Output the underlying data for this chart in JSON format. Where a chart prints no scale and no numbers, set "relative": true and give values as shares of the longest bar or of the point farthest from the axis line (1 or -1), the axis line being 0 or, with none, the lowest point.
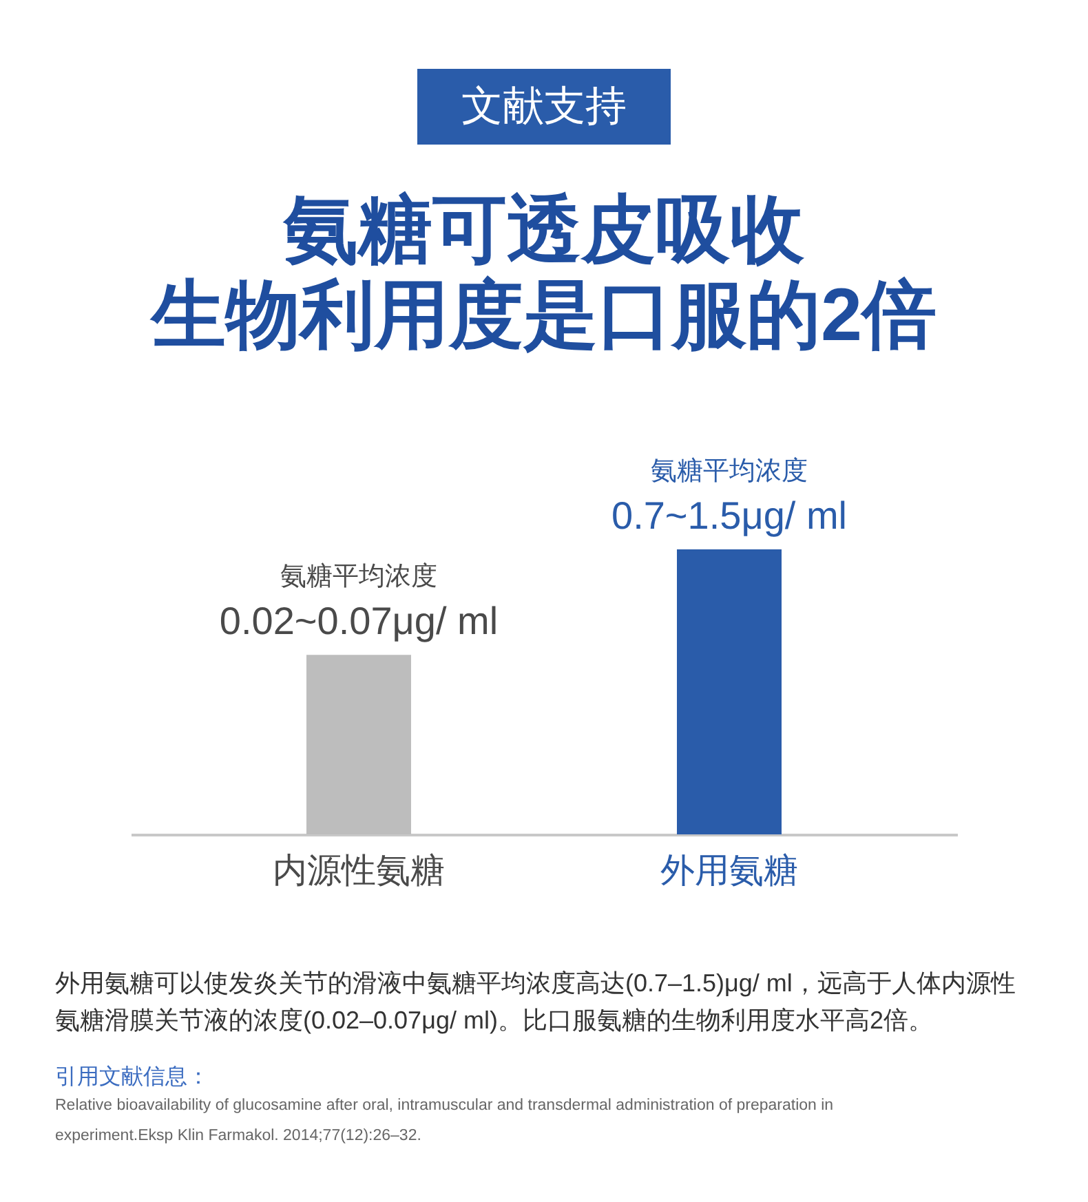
{
  "chart_data": {
    "type": "bar",
    "title": "氨糖可透皮吸收",
    "subtitle": "生物利用度是口服的2倍",
    "categories": [
      "内源性氨糖",
      "外用氨糖"
    ],
    "values": [
      0.63,
      1
    ],
    "colors": [
      "#bdbdbd",
      "#2a5caa"
    ],
    "relative": true,
    "annotations": [
      "文献支持",
      {
        "text": "氨糖平均浓度",
        "x": "内源性氨糖",
        "y": 0.63
      },
      {
        "text": "0.02~0.07μg/ ml",
        "x": "内源性氨糖",
        "y": 0.63
      },
      {
        "text": "氨糖平均浓度",
        "x": "外用氨糖",
        "y": 1
      },
      {
        "text": "0.7~1.5μg/ ml",
        "x": "外用氨糖",
        "y": 1
      },
      "外用氨糖可以使发炎关节的滑液中氨糖平均浓度高达(0.7–1.5)μg/ ml，远高于人体内源性氨糖滑膜关节液的浓度(0.02–0.07μg/ ml)。比口服氨糖的生物利用度水平高2倍。",
      "引用文献信息：",
      "Relative bioavailability of glucosamine after oral, intramuscular and transdermal administration of preparation in experiment.Eksp Klin Farmakol. 2014;77(12):26–32."
    ]
  }
}
